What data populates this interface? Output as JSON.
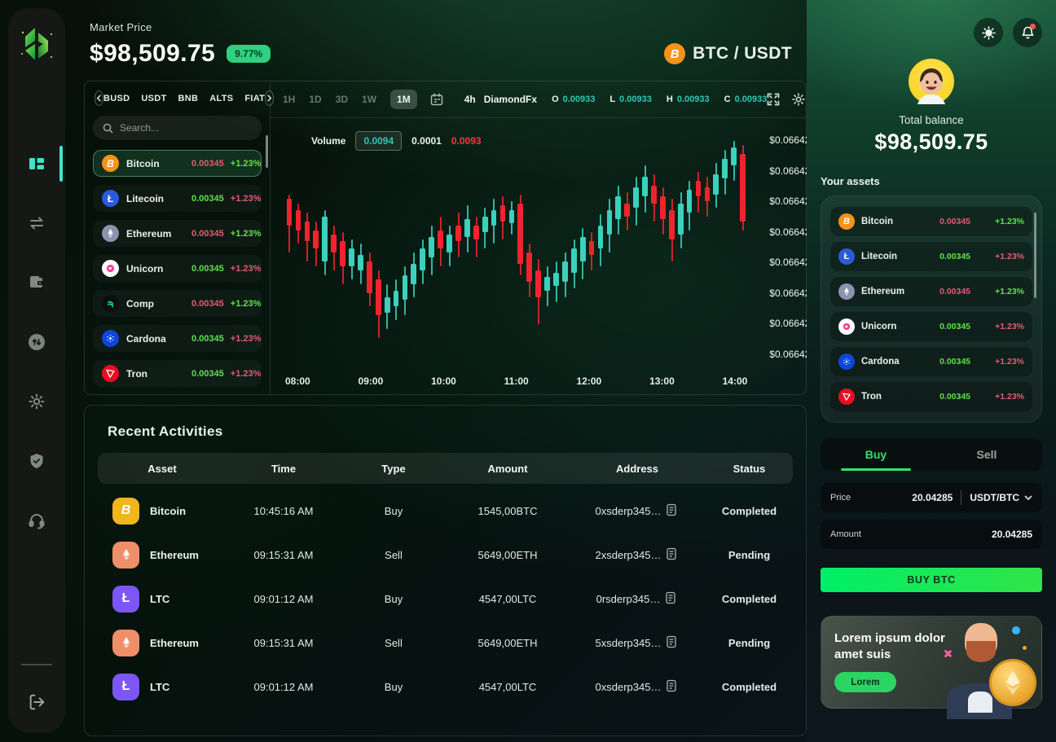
{
  "theme": {
    "accent": "#35e06a",
    "lime": "#5fe14b",
    "pink": "#e25c74",
    "teal": "#2cc9b2",
    "candle_up": "#3ad1bd",
    "candle_down": "#f0232e",
    "completed": "#1fd1a0",
    "pending": "#e4484a",
    "buy_a": "#00ef67",
    "buy_b": "#31e348",
    "badge": "#2fd180"
  },
  "sidebar": {
    "items": [
      {
        "id": "dashboard",
        "icon": "dashboard-grid-icon",
        "active": true
      },
      {
        "id": "swap",
        "icon": "swap-arrows-icon",
        "active": false
      },
      {
        "id": "wallet",
        "icon": "wallet-icon",
        "active": false
      },
      {
        "id": "transactions",
        "icon": "transfer-circle-icon",
        "active": false
      },
      {
        "id": "settings",
        "icon": "settings-gear-icon",
        "active": false
      },
      {
        "id": "security",
        "icon": "security-shield-icon",
        "active": false
      },
      {
        "id": "support",
        "icon": "support-headset-icon",
        "active": false
      }
    ],
    "logout_icon": "logout-icon"
  },
  "header": {
    "market_price_label": "Market Price",
    "market_price": "$98,509.75",
    "change_badge": "9.77%",
    "pair": "BTC / USDT",
    "pair_icon": "bitcoin-icon"
  },
  "watchlist": {
    "tabs": [
      "BUSD",
      "USDT",
      "BNB",
      "ALTS",
      "FIAT"
    ],
    "search_placeholder": "Search...",
    "coins": [
      {
        "name": "Bitcoin",
        "value": "0.00345",
        "change": "+1.23%",
        "value_color": "pink",
        "change_color": "green",
        "icon": "bitcoin",
        "icon_bg": "#f7931a",
        "active": true
      },
      {
        "name": "Litecoin",
        "value": "0.00345",
        "change": "+1.23%",
        "value_color": "green",
        "change_color": "pink",
        "icon": "litecoin",
        "icon_bg": "#2a5ada",
        "active": false
      },
      {
        "name": "Ethereum",
        "value": "0.00345",
        "change": "+1.23%",
        "value_color": "pink",
        "change_color": "green",
        "icon": "ethereum",
        "icon_bg": "#8b93ae",
        "active": false
      },
      {
        "name": "Unicorn",
        "value": "0.00345",
        "change": "+1.23%",
        "value_color": "green",
        "change_color": "pink",
        "icon": "unicorn",
        "icon_bg": "#ffffff",
        "active": false
      },
      {
        "name": "Comp",
        "value": "0.00345",
        "change": "+1.23%",
        "value_color": "pink",
        "change_color": "green",
        "icon": "comp",
        "icon_bg": "#0b0f12",
        "active": false
      },
      {
        "name": "Cardona",
        "value": "0.00345",
        "change": "+1.23%",
        "value_color": "green",
        "change_color": "pink",
        "icon": "cardona",
        "icon_bg": "#0d47d9",
        "active": false
      },
      {
        "name": "Tron",
        "value": "0.00345",
        "change": "+1.23%",
        "value_color": "green",
        "change_color": "pink",
        "icon": "tron",
        "icon_bg": "#eb0c22",
        "active": false
      }
    ]
  },
  "chart": {
    "timeframes": [
      "1H",
      "1D",
      "3D",
      "1W",
      "1M"
    ],
    "active_timeframe": "1M",
    "interval": "4h",
    "provider": "DiamondFx",
    "ohlc": [
      {
        "k": "O",
        "v": "0.00933"
      },
      {
        "k": "L",
        "v": "0.00933"
      },
      {
        "k": "H",
        "v": "0.00933"
      },
      {
        "k": "C",
        "v": "0.00933"
      }
    ],
    "volume": {
      "label": "Volume",
      "highlighted": "0.0094",
      "mid": "0.0001",
      "low": "0.0093"
    },
    "price_axis": [
      "$0.06642",
      "$0.06642",
      "$0.06642",
      "$0.06642",
      "$0.06642",
      "$0.06642",
      "$0.06642",
      "$0.06642"
    ],
    "time_axis": [
      "08:00",
      "09:00",
      "10:00",
      "11:00",
      "12:00",
      "13:00",
      "14:00"
    ],
    "candles": [
      [
        0,
        26,
        28,
        40,
        52
      ],
      [
        0,
        30,
        33,
        42,
        48
      ],
      [
        0,
        34,
        38,
        47,
        56
      ],
      [
        0,
        38,
        42,
        50,
        58
      ],
      [
        1,
        33,
        36,
        56,
        62
      ],
      [
        0,
        40,
        44,
        52,
        60
      ],
      [
        0,
        43,
        47,
        58,
        66
      ],
      [
        1,
        46,
        50,
        58,
        64
      ],
      [
        1,
        48,
        53,
        60,
        66
      ],
      [
        0,
        52,
        56,
        70,
        76
      ],
      [
        0,
        60,
        64,
        80,
        90
      ],
      [
        1,
        66,
        72,
        79,
        86
      ],
      [
        1,
        64,
        69,
        76,
        82
      ],
      [
        1,
        58,
        62,
        73,
        80
      ],
      [
        1,
        52,
        57,
        66,
        72
      ],
      [
        1,
        46,
        50,
        60,
        66
      ],
      [
        1,
        40,
        45,
        54,
        62
      ],
      [
        0,
        36,
        42,
        50,
        58
      ],
      [
        1,
        40,
        44,
        52,
        58
      ],
      [
        0,
        34,
        40,
        47,
        54
      ],
      [
        1,
        31,
        37,
        45,
        52
      ],
      [
        0,
        36,
        40,
        46,
        54
      ],
      [
        1,
        32,
        36,
        43,
        50
      ],
      [
        1,
        28,
        33,
        40,
        48
      ],
      [
        0,
        27,
        31,
        38,
        46
      ],
      [
        1,
        29,
        33,
        39,
        44
      ],
      [
        0,
        26,
        30,
        57,
        62
      ],
      [
        0,
        48,
        52,
        65,
        72
      ],
      [
        0,
        55,
        60,
        72,
        84
      ],
      [
        1,
        58,
        63,
        69,
        76
      ],
      [
        1,
        56,
        61,
        67,
        74
      ],
      [
        1,
        52,
        56,
        65,
        72
      ],
      [
        1,
        46,
        50,
        61,
        68
      ],
      [
        1,
        41,
        45,
        56,
        64
      ],
      [
        0,
        43,
        47,
        53,
        60
      ],
      [
        1,
        35,
        40,
        50,
        58
      ],
      [
        1,
        28,
        33,
        44,
        52
      ],
      [
        1,
        22,
        27,
        37,
        44
      ],
      [
        0,
        25,
        30,
        36,
        42
      ],
      [
        1,
        18,
        23,
        32,
        40
      ],
      [
        1,
        13,
        18,
        27,
        34
      ],
      [
        0,
        17,
        22,
        30,
        38
      ],
      [
        0,
        23,
        27,
        37,
        44
      ],
      [
        0,
        28,
        33,
        46,
        56
      ],
      [
        1,
        25,
        30,
        44,
        50
      ],
      [
        1,
        20,
        24,
        34,
        42
      ],
      [
        0,
        16,
        20,
        27,
        34
      ],
      [
        0,
        18,
        23,
        29,
        36
      ],
      [
        1,
        12,
        17,
        26,
        32
      ],
      [
        1,
        6,
        10,
        19,
        26
      ],
      [
        1,
        2,
        5,
        13,
        20
      ],
      [
        0,
        4,
        8,
        38,
        42
      ]
    ]
  },
  "activities": {
    "title": "Recent Activities",
    "columns": [
      "Asset",
      "Time",
      "Type",
      "Amount",
      "Address",
      "Status"
    ],
    "rows": [
      {
        "asset": "Bitcoin",
        "icon": "bitcoin",
        "icon_bg": "#f2b51c",
        "time": "10:45:16 AM",
        "type": "Buy",
        "amount": "1545,00BTC",
        "address": "0xsderp345…",
        "status": "Completed",
        "status_color": "completed"
      },
      {
        "asset": "Ethereum",
        "icon": "ethereum",
        "icon_bg": "#ef8f69",
        "time": "09:15:31 AM",
        "type": "Sell",
        "amount": "5649,00ETH",
        "address": "2xsderp345…",
        "status": "Pending",
        "status_color": "pending"
      },
      {
        "asset": "LTC",
        "icon": "litecoin",
        "icon_bg": "#7c57f5",
        "time": "09:01:12 AM",
        "type": "Buy",
        "amount": "4547,00LTC",
        "address": "0rsderp345…",
        "status": "Completed",
        "status_color": "completed"
      },
      {
        "asset": "Ethereum",
        "icon": "ethereum",
        "icon_bg": "#ef8f69",
        "time": "09:15:31 AM",
        "type": "Sell",
        "amount": "5649,00ETH",
        "address": "5xsderp345…",
        "status": "Pending",
        "status_color": "pending"
      },
      {
        "asset": "LTC",
        "icon": "litecoin",
        "icon_bg": "#7c57f5",
        "time": "09:01:12 AM",
        "type": "Buy",
        "amount": "4547,00LTC",
        "address": "0xsderp345…",
        "status": "Completed",
        "status_color": "completed"
      }
    ]
  },
  "account": {
    "total_balance_label": "Total balance",
    "total_balance": "$98,509.75",
    "assets_label": "Your assets",
    "assets": [
      {
        "name": "Bitcoin",
        "value": "0.00345",
        "change": "+1.23%",
        "value_color": "pink",
        "change_color": "green",
        "icon": "bitcoin",
        "icon_bg": "#f7931a"
      },
      {
        "name": "Litecoin",
        "value": "0.00345",
        "change": "+1.23%",
        "value_color": "green",
        "change_color": "pink",
        "icon": "litecoin",
        "icon_bg": "#2a5ada"
      },
      {
        "name": "Ethereum",
        "value": "0.00345",
        "change": "+1.23%",
        "value_color": "pink",
        "change_color": "green",
        "icon": "ethereum",
        "icon_bg": "#8b93ae"
      },
      {
        "name": "Unicorn",
        "value": "0.00345",
        "change": "+1.23%",
        "value_color": "green",
        "change_color": "pink",
        "icon": "unicorn",
        "icon_bg": "#ffffff"
      },
      {
        "name": "Cardona",
        "value": "0.00345",
        "change": "+1.23%",
        "value_color": "green",
        "change_color": "pink",
        "icon": "cardona",
        "icon_bg": "#0d47d9"
      },
      {
        "name": "Tron",
        "value": "0.00345",
        "change": "+1.23%",
        "value_color": "green",
        "change_color": "pink",
        "icon": "tron",
        "icon_bg": "#eb0c22"
      }
    ],
    "trade": {
      "buy_tab": "Buy",
      "sell_tab": "Sell",
      "active_tab": "Buy",
      "price_label": "Price",
      "price_value": "20.04285",
      "price_unit": "USDT/BTC",
      "amount_label": "Amount",
      "amount_value": "20.04285",
      "submit_label": "BUY BTC"
    },
    "promo": {
      "title": "Lorem ipsum dolor amet suis",
      "button": "Lorem"
    }
  }
}
